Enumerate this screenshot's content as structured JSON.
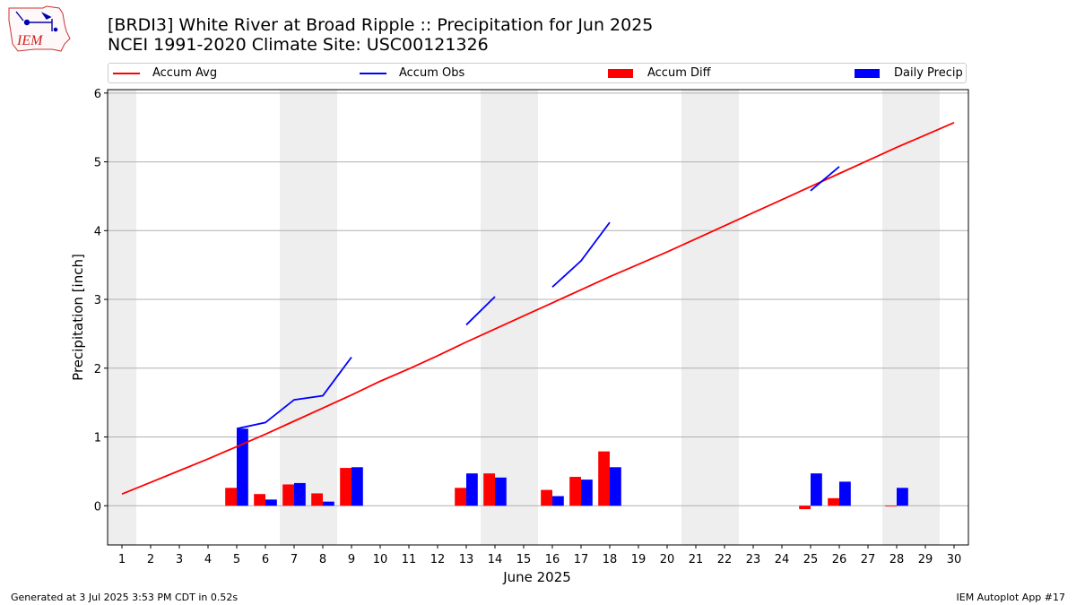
{
  "header": {
    "title": "[BRDI3] White River at Broad Ripple :: Precipitation for Jun 2025",
    "subtitle": "NCEI 1991-2020 Climate Site: USC00121326",
    "logo_text": "IEM"
  },
  "footer": {
    "generated": "Generated at 3 Jul 2025 3:53 PM CDT in 0.52s",
    "app": "IEM Autoplot App #17"
  },
  "colors": {
    "avg": "#ff0000",
    "obs": "#0000ff",
    "diff": "#ff0000",
    "daily": "#0000ff",
    "weekend_band": "#eeeeee",
    "grid": "#b0b0b0"
  },
  "chart_data": {
    "type": "bar",
    "xlabel": "June 2025",
    "ylabel": "Precipitation [inch]",
    "xlim": [
      0.5,
      30.5
    ],
    "ylim": [
      -0.57,
      6.05
    ],
    "yticks": [
      0,
      1,
      2,
      3,
      4,
      5,
      6
    ],
    "xticks": [
      1,
      2,
      3,
      4,
      5,
      6,
      7,
      8,
      9,
      10,
      11,
      12,
      13,
      14,
      15,
      16,
      17,
      18,
      19,
      20,
      21,
      22,
      23,
      24,
      25,
      26,
      27,
      28,
      29,
      30
    ],
    "grid": "horizontal",
    "legend_position": "top",
    "weekend_bands": [
      [
        0.5,
        1.5
      ],
      [
        6.5,
        8.5
      ],
      [
        13.5,
        15.5
      ],
      [
        20.5,
        22.5
      ],
      [
        27.5,
        29.5
      ]
    ],
    "series": [
      {
        "name": "Accum Avg",
        "kind": "line",
        "x": [
          1,
          2,
          3,
          4,
          5,
          6,
          7,
          8,
          9,
          10,
          11,
          12,
          13,
          14,
          15,
          16,
          17,
          18,
          19,
          20,
          21,
          22,
          23,
          24,
          25,
          26,
          27,
          28,
          29,
          30
        ],
        "values": [
          0.17,
          0.34,
          0.51,
          0.68,
          0.86,
          1.04,
          1.23,
          1.42,
          1.61,
          1.81,
          1.99,
          2.18,
          2.38,
          2.57,
          2.76,
          2.95,
          3.14,
          3.33,
          3.51,
          3.69,
          3.88,
          4.07,
          4.26,
          4.45,
          4.64,
          4.83,
          5.02,
          5.21,
          5.39,
          5.57
        ]
      },
      {
        "name": "Accum Obs",
        "kind": "line",
        "segments": [
          {
            "x": [
              5,
              6,
              7,
              8,
              9
            ],
            "values": [
              1.12,
              1.21,
              1.54,
              1.6,
              2.16
            ]
          },
          {
            "x": [
              13,
              14
            ],
            "values": [
              2.63,
              3.04
            ]
          },
          {
            "x": [
              16,
              17,
              18
            ],
            "values": [
              3.18,
              3.56,
              4.12
            ]
          },
          {
            "x": [
              25,
              26
            ],
            "values": [
              4.58,
              4.93
            ]
          }
        ]
      },
      {
        "name": "Accum Diff",
        "kind": "bar",
        "x": [
          5,
          6,
          7,
          8,
          9,
          13,
          14,
          16,
          17,
          18,
          25,
          26,
          28
        ],
        "values": [
          0.26,
          0.17,
          0.31,
          0.18,
          0.55,
          0.26,
          0.47,
          0.23,
          0.42,
          0.79,
          -0.05,
          0.11,
          -0.01
        ]
      },
      {
        "name": "Daily Precip",
        "kind": "bar",
        "x": [
          5,
          6,
          7,
          8,
          9,
          13,
          14,
          16,
          17,
          18,
          25,
          26,
          28
        ],
        "values": [
          1.12,
          0.09,
          0.33,
          0.06,
          0.56,
          0.47,
          0.41,
          0.14,
          0.38,
          0.56,
          0.47,
          0.35,
          0.26
        ]
      }
    ]
  }
}
